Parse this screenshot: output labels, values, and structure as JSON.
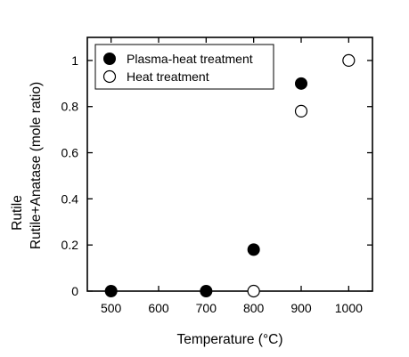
{
  "chart_data": {
    "type": "scatter",
    "xlabel": "Temperature (°C)",
    "ylabel_line1": "Rutile",
    "ylabel_line2": "Rutile+Anatase (mole ratio)",
    "xlim": [
      450,
      1050
    ],
    "ylim": [
      0,
      1.1
    ],
    "x_ticks": [
      500,
      600,
      700,
      800,
      900,
      1000
    ],
    "x_tick_labels": [
      "500",
      "600",
      "700",
      "800",
      "900",
      "1000"
    ],
    "y_ticks": [
      0,
      0.2,
      0.4,
      0.6,
      0.8,
      1.0
    ],
    "y_tick_labels": [
      "0",
      "0.2",
      "0.4",
      "0.6",
      "0.8",
      "1"
    ],
    "legend_position": "top-left",
    "series": [
      {
        "name": "Plasma-heat treatment",
        "marker": "filled-circle",
        "color": "#000000",
        "x": [
          500,
          700,
          800,
          900
        ],
        "y": [
          0,
          0,
          0.18,
          0.9
        ]
      },
      {
        "name": "Heat treatment",
        "marker": "open-circle",
        "color": "#000000",
        "x": [
          800,
          900,
          1000
        ],
        "y": [
          0,
          0.78,
          1.0
        ]
      }
    ]
  }
}
